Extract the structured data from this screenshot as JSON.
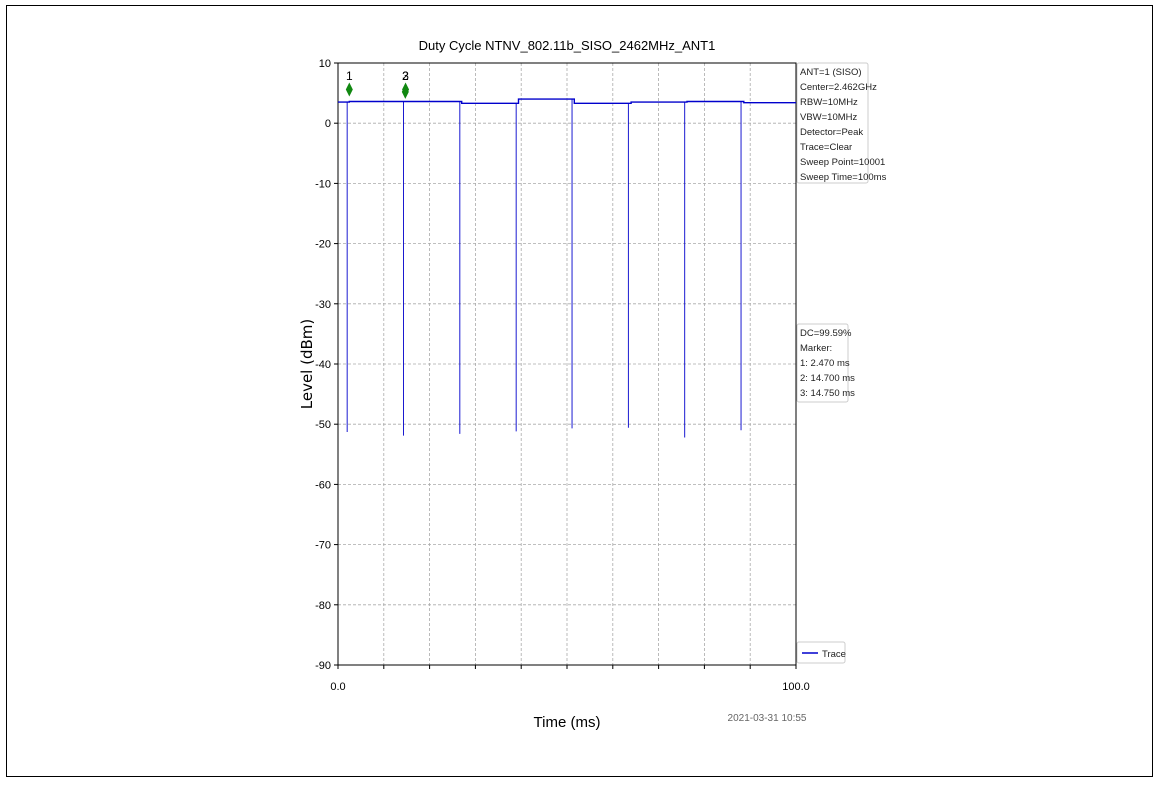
{
  "chart_data": {
    "type": "line",
    "title": "Duty Cycle NTNV_802.11b_SISO_2462MHz_ANT1",
    "xlabel": "Time (ms)",
    "ylabel": "Level (dBm)",
    "xlim": [
      0,
      100
    ],
    "ylim": [
      -90,
      10
    ],
    "x_ticks": [
      0,
      100
    ],
    "x_tick_labels": [
      "0.0",
      "100.0"
    ],
    "x_minor_ticks": [
      10,
      20,
      30,
      40,
      50,
      60,
      70,
      80,
      90
    ],
    "y_ticks": [
      -90,
      -80,
      -70,
      -60,
      -50,
      -40,
      -30,
      -20,
      -10,
      0,
      10
    ],
    "grid": true,
    "legend_position": "bottom-right",
    "series": [
      {
        "name": "Trace",
        "color": "#0000cc",
        "levels": [
          {
            "x": [
              0,
              2.47
            ],
            "y": 3.5
          },
          {
            "x": [
              2.47,
              14.7
            ],
            "y": 3.6
          },
          {
            "x": [
              14.7,
              27.0
            ],
            "y": 3.6
          },
          {
            "x": [
              27.0,
              39.4
            ],
            "y": 3.3
          },
          {
            "x": [
              39.4,
              51.6
            ],
            "y": 4.0
          },
          {
            "x": [
              51.6,
              64.0
            ],
            "y": 3.3
          },
          {
            "x": [
              64.0,
              76.2
            ],
            "y": 3.5
          },
          {
            "x": [
              76.2,
              88.6
            ],
            "y": 3.6
          },
          {
            "x": [
              88.6,
              100
            ],
            "y": 3.4
          }
        ],
        "dips": [
          {
            "x": 2.0,
            "y": -51.3
          },
          {
            "x": 14.3,
            "y": -51.9
          },
          {
            "x": 26.6,
            "y": -51.6
          },
          {
            "x": 38.9,
            "y": -51.2
          },
          {
            "x": 51.1,
            "y": -50.7
          },
          {
            "x": 63.4,
            "y": -50.6
          },
          {
            "x": 75.7,
            "y": -52.2
          },
          {
            "x": 88.0,
            "y": -51.0
          }
        ]
      }
    ],
    "markers": [
      {
        "label": "1",
        "x": 2.47,
        "y": 5.6
      },
      {
        "label": "2",
        "x": 14.7,
        "y": 5.2
      },
      {
        "label": "3",
        "x": 14.75,
        "y": 5.6
      }
    ],
    "marker_color": "#118811"
  },
  "info_box": {
    "lines": [
      "ANT=1 (SISO)",
      "Center=2.462GHz",
      "RBW=10MHz",
      "VBW=10MHz",
      "Detector=Peak",
      "Trace=Clear",
      "Sweep Point=10001",
      "Sweep Time=100ms"
    ]
  },
  "dc_box": {
    "lines": [
      "DC=99.59%",
      "Marker:",
      "1: 2.470 ms",
      "2: 14.700 ms",
      "3: 14.750 ms"
    ]
  },
  "legend": {
    "label": "Trace"
  },
  "timestamp": "2021-03-31 10:55"
}
